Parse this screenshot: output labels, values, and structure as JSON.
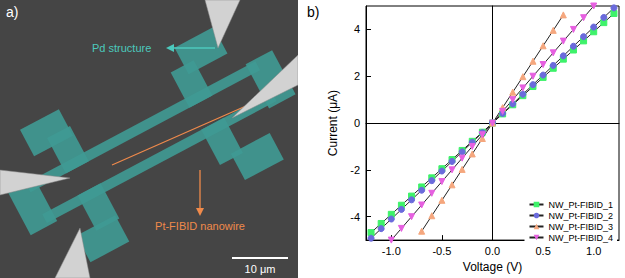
{
  "panel_a": {
    "label": "a)",
    "annotations": [
      "Pd structure",
      "Pt-FIBID nanowire"
    ],
    "scale_bar": "10 μm"
  },
  "chart_data": {
    "type": "line",
    "title": "b)",
    "x_label": "Voltage (V)",
    "y_label": "Current (μA)",
    "xlim": [
      -1.25,
      1.25
    ],
    "xticks": [
      {
        "value": -1,
        "label": "-1.0"
      },
      {
        "value": -0.5,
        "label": "-0.5"
      },
      {
        "value": 0,
        "label": "0.0"
      },
      {
        "value": 0.5,
        "label": "0.5"
      },
      {
        "value": 1,
        "label": "1.0"
      }
    ],
    "ylim": [
      -5,
      5
    ],
    "yticks": [
      -4,
      -2,
      0,
      2,
      4
    ],
    "grid": false,
    "legend": "lower right",
    "x": [
      -1.2,
      -1.1,
      -1.0,
      -0.9,
      -0.8,
      -0.7,
      -0.6,
      -0.5,
      -0.4,
      -0.3,
      -0.2,
      -0.1,
      0,
      0.1,
      0.2,
      0.3,
      0.4,
      0.5,
      0.6,
      0.7,
      0.8,
      0.9,
      1.0,
      1.1,
      1.2
    ],
    "series": [
      {
        "name": "NW_Pt-FIBID_1",
        "color": "#3ef26a",
        "marker": "square",
        "values": [
          -4.68,
          -4.29,
          -3.9,
          -3.51,
          -3.12,
          -2.73,
          -2.34,
          -1.95,
          -1.56,
          -1.17,
          -0.78,
          -0.39,
          0,
          0.39,
          0.78,
          1.17,
          1.56,
          1.95,
          2.34,
          2.73,
          3.12,
          3.51,
          3.9,
          4.29,
          4.68
        ]
      },
      {
        "name": "NW_Pt-FIBID_2",
        "color": "#6b6bdc",
        "marker": "circle",
        "values": [
          -4.92,
          -4.51,
          -4.1,
          -3.69,
          -3.28,
          -2.87,
          -2.46,
          -2.05,
          -1.64,
          -1.23,
          -0.82,
          -0.41,
          0,
          0.41,
          0.82,
          1.23,
          1.64,
          2.05,
          2.46,
          2.87,
          3.28,
          3.69,
          4.1,
          4.51,
          4.92
        ]
      },
      {
        "name": "NW_Pt-FIBID_3",
        "color": "#f5a77e",
        "marker": "triangle-up",
        "values": [
          null,
          null,
          null,
          null,
          null,
          -4.62,
          -3.96,
          -3.3,
          -2.64,
          -1.98,
          -1.32,
          -0.66,
          0,
          0.66,
          1.32,
          1.98,
          2.64,
          3.3,
          3.96,
          4.62,
          null,
          null,
          null,
          null,
          null
        ]
      },
      {
        "name": "NW_Pt-FIBID_4",
        "color": "#e660e0",
        "marker": "triangle-down",
        "values": [
          null,
          null,
          -5,
          -4.5,
          -4,
          -3.5,
          -3,
          -2.5,
          -2,
          -1.5,
          -1,
          -0.5,
          0,
          0.5,
          1,
          1.5,
          2,
          2.5,
          3,
          3.5,
          4,
          4.5,
          5,
          null,
          null
        ]
      }
    ]
  }
}
